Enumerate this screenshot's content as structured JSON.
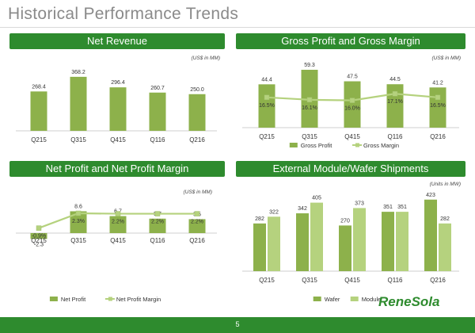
{
  "page": {
    "title": "Historical Performance Trends",
    "page_number": "5",
    "logo_text": "ReneSola"
  },
  "colors": {
    "banner": "#2e8b2e",
    "bar_dark": "#8db14b",
    "bar_light": "#b5d27e",
    "line": "#b5d27e",
    "marker": "#b5d27e"
  },
  "chart_data": [
    {
      "id": "net-revenue",
      "type": "bar",
      "title": "Net Revenue",
      "unit_note": "(US$ in MM)",
      "categories": [
        "Q215",
        "Q315",
        "Q415",
        "Q116",
        "Q216"
      ],
      "series": [
        {
          "values": [
            268.4,
            368.2,
            296.4,
            260.7,
            250.0
          ],
          "labels": [
            "268.4",
            "368.2",
            "296.4",
            "260.7",
            "250.0"
          ]
        }
      ],
      "ylim": [
        0,
        400
      ]
    },
    {
      "id": "gross-profit",
      "type": "bar",
      "title": "Gross  Profit and Gross Margin",
      "unit_note": "(US$ in MM)",
      "categories": [
        "Q215",
        "Q315",
        "Q415",
        "Q116",
        "Q216"
      ],
      "series": [
        {
          "name": "Gross Profit",
          "values": [
            44.4,
            59.3,
            47.5,
            44.5,
            41.2
          ],
          "labels": [
            "44.4",
            "59.3",
            "47.5",
            "44.5",
            "41.2"
          ]
        },
        {
          "name": "Gross Margin",
          "type": "line",
          "values": [
            16.5,
            16.1,
            16.0,
            17.1,
            16.5
          ],
          "labels": [
            "16.5%",
            "16.1%",
            "16.0%",
            "17.1%",
            "16.5%"
          ]
        }
      ],
      "ylim": [
        0,
        65
      ],
      "y2lim": [
        12,
        22
      ]
    },
    {
      "id": "net-profit",
      "type": "bar",
      "title": "Net Profit and Net Profit Margin",
      "unit_note": "(US$ in MM)",
      "categories": [
        "Q215",
        "Q315",
        "Q415",
        "Q116",
        "Q216"
      ],
      "series": [
        {
          "name": "Net Profit",
          "values": [
            -2.3,
            8.6,
            6.7,
            5.7,
            5.5
          ],
          "labels": [
            "-2.3",
            "8.6",
            "6.7",
            "5.7",
            "5.5"
          ]
        },
        {
          "name": "Net Profit Margin",
          "type": "line",
          "values": [
            -0.9,
            2.3,
            2.2,
            2.2,
            2.2
          ],
          "labels": [
            "-0.9%",
            "2.3%",
            "2.2%",
            "2.2%",
            "2.2%"
          ]
        }
      ],
      "ylim": [
        -4,
        10
      ],
      "y2lim": [
        -1.3,
        3.5
      ]
    },
    {
      "id": "shipments",
      "type": "bar",
      "title": "External Module/Wafer Shipments",
      "unit_note": "(Units in MW)",
      "categories": [
        "Q215",
        "Q315",
        "Q415",
        "Q116",
        "Q216"
      ],
      "series": [
        {
          "name": "Wafer",
          "values": [
            282,
            342,
            270,
            351,
            423
          ],
          "labels": [
            "282",
            "342",
            "270",
            "351",
            "423"
          ]
        },
        {
          "name": "Module",
          "values": [
            322,
            405,
            373,
            351,
            282
          ],
          "labels": [
            "322",
            "405",
            "373",
            "351",
            "282"
          ]
        }
      ],
      "ylim": [
        0,
        450
      ]
    }
  ]
}
